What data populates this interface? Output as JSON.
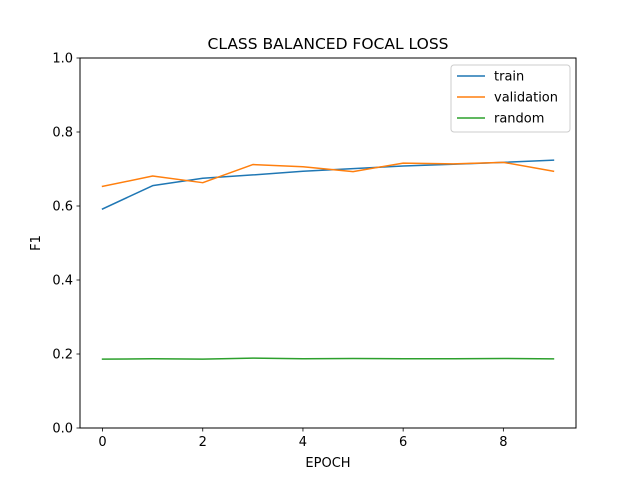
{
  "chart_data": {
    "type": "line",
    "title": "CLASS BALANCED FOCAL LOSS",
    "xlabel": "EPOCH",
    "ylabel": "F1",
    "xlim": [
      -0.45,
      9.45
    ],
    "ylim": [
      0.0,
      1.0
    ],
    "xticks": [
      0,
      2,
      4,
      6,
      8
    ],
    "xtick_labels": [
      "0",
      "2",
      "4",
      "6",
      "8"
    ],
    "yticks": [
      0.0,
      0.2,
      0.4,
      0.6,
      0.8,
      1.0
    ],
    "ytick_labels": [
      "0.0",
      "0.2",
      "0.4",
      "0.6",
      "0.8",
      "1.0"
    ],
    "grid": false,
    "legend_position": "top-right",
    "x": [
      0,
      1,
      2,
      3,
      4,
      5,
      6,
      7,
      8,
      9
    ],
    "series": [
      {
        "name": "train",
        "color": "#1f77b4",
        "values": [
          0.592,
          0.655,
          0.675,
          0.684,
          0.694,
          0.701,
          0.708,
          0.713,
          0.718,
          0.724
        ]
      },
      {
        "name": "validation",
        "color": "#ff7f0e",
        "values": [
          0.653,
          0.681,
          0.663,
          0.712,
          0.706,
          0.693,
          0.716,
          0.714,
          0.718,
          0.694
        ]
      },
      {
        "name": "random",
        "color": "#2ca02c",
        "values": [
          0.186,
          0.187,
          0.186,
          0.189,
          0.187,
          0.188,
          0.187,
          0.187,
          0.188,
          0.187
        ]
      }
    ]
  }
}
